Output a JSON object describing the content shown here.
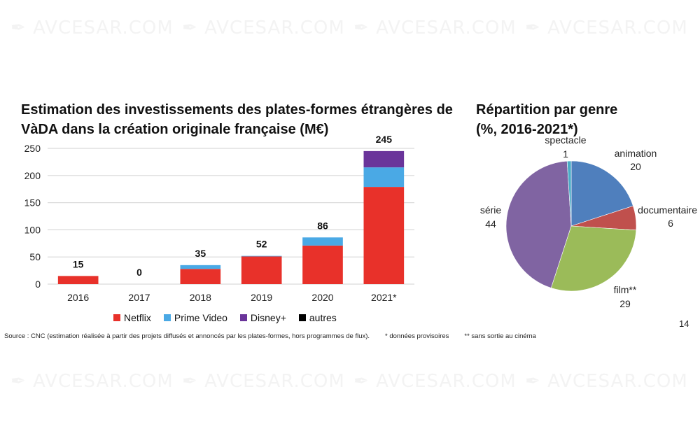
{
  "watermark": {
    "text": "AVCESAR.COM"
  },
  "chart_data": [
    {
      "type": "bar",
      "stacked": true,
      "title": "Estimation des investissements des plates-formes étrangères de VàDA dans la création originale française (M€)",
      "title_lines": [
        "Estimation des investissements des plates-formes étrangères de",
        "VàDA dans la création originale française (M€)"
      ],
      "xlabel": "",
      "ylabel": "",
      "ylim": [
        0,
        250
      ],
      "yticks": [
        0,
        50,
        100,
        150,
        200,
        250
      ],
      "grid": true,
      "categories": [
        "2016",
        "2017",
        "2018",
        "2019",
        "2020",
        "2021*"
      ],
      "totals": [
        15,
        0,
        35,
        52,
        86,
        245
      ],
      "series": [
        {
          "name": "Netflix",
          "color": "#e8312a",
          "values": [
            15,
            0,
            28,
            51,
            71,
            179
          ]
        },
        {
          "name": "Prime Video",
          "color": "#4aa9e5",
          "values": [
            0,
            0,
            7,
            1,
            15,
            36
          ]
        },
        {
          "name": "Disney+",
          "color": "#6a349a",
          "values": [
            0,
            0,
            0,
            0,
            0,
            30
          ]
        },
        {
          "name": "autres",
          "color": "#000000",
          "values": [
            0,
            0,
            0,
            0,
            0,
            0
          ]
        }
      ],
      "legend_position": "bottom"
    },
    {
      "type": "pie",
      "title": "Répartition par genre (%, 2016-2021*)",
      "title_lines": [
        "Répartition par genre",
        "(%, 2016-2021*)"
      ],
      "slices": [
        {
          "label": "animation",
          "value": 20,
          "color": "#4f7fbd"
        },
        {
          "label": "documentaire",
          "value": 6,
          "color": "#c0504d"
        },
        {
          "label": "film**",
          "value": 29,
          "color": "#9bbb59"
        },
        {
          "label": "série",
          "value": 44,
          "color": "#8064a2"
        },
        {
          "label": "spectacle",
          "value": 1,
          "color": "#4bacc6"
        }
      ]
    }
  ],
  "footer": {
    "source": "Source : CNC (estimation réalisée à partir des projets diffusés et annoncés par les plates-formes, hors programmes de flux).",
    "note1": "* données provisoires",
    "note2": "** sans sortie au cinéma",
    "page_number": "14"
  }
}
